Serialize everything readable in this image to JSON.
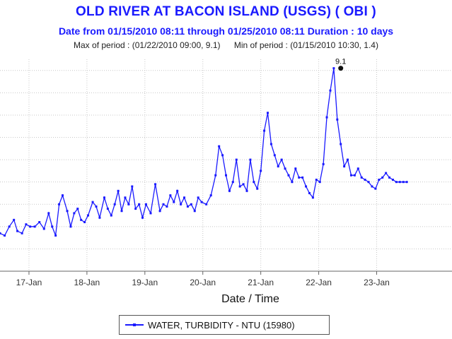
{
  "chart_data": {
    "type": "line",
    "title": "OLD RIVER AT BACON ISLAND (USGS) ( OBI )",
    "subtitle": "Date from 01/15/2010 08:11 through 01/25/2010 08:11 Duration : 10 days",
    "stats": {
      "max_text": "Max of period : (01/22/2010 09:00, 9.1)",
      "min_text": "Min of period : (01/15/2010 10:30,  1.4)"
    },
    "xlabel": "Date / Time",
    "ylabel": "",
    "x_unit": "days since 01/15/2010 00:00",
    "xlim": [
      16.5,
      24.3
    ],
    "ylim": [
      0,
      9.5
    ],
    "grid": true,
    "x_ticks": [
      {
        "x": 17,
        "label": "17-Jan"
      },
      {
        "x": 18,
        "label": "18-Jan"
      },
      {
        "x": 19,
        "label": "19-Jan"
      },
      {
        "x": 20,
        "label": "20-Jan"
      },
      {
        "x": 21,
        "label": "21-Jan"
      },
      {
        "x": 22,
        "label": "22-Jan"
      },
      {
        "x": 23,
        "label": "23-Jan"
      }
    ],
    "annotation": {
      "label": "9.1",
      "x": 22.38,
      "y": 9.1
    },
    "legend": {
      "position": "bottom-center",
      "label": "WATER, TURBIDITY -    NTU (15980)"
    },
    "series": [
      {
        "name": "WATER, TURBIDITY -    NTU (15980)",
        "color": "#1a1aff",
        "x": [
          16.5,
          16.58,
          16.66,
          16.74,
          16.8,
          16.88,
          16.95,
          17.02,
          17.1,
          17.18,
          17.26,
          17.34,
          17.4,
          17.46,
          17.52,
          17.58,
          17.66,
          17.72,
          17.78,
          17.84,
          17.9,
          17.96,
          18.02,
          18.1,
          18.16,
          18.22,
          18.3,
          18.36,
          18.42,
          18.48,
          18.54,
          18.6,
          18.66,
          18.72,
          18.78,
          18.84,
          18.9,
          18.96,
          19.02,
          19.1,
          19.18,
          19.26,
          19.32,
          19.38,
          19.44,
          19.5,
          19.56,
          19.62,
          19.68,
          19.74,
          19.8,
          19.86,
          19.92,
          19.98,
          20.06,
          20.14,
          20.22,
          20.28,
          20.34,
          20.4,
          20.46,
          20.52,
          20.58,
          20.64,
          20.7,
          20.76,
          20.82,
          20.88,
          20.94,
          21.0,
          21.06,
          21.12,
          21.18,
          21.24,
          21.3,
          21.36,
          21.42,
          21.48,
          21.54,
          21.6,
          21.66,
          21.72,
          21.78,
          21.84,
          21.9,
          21.96,
          22.02,
          22.08,
          22.14,
          22.2,
          22.26,
          22.32,
          22.38,
          22.44,
          22.5,
          22.56,
          22.62,
          22.68,
          22.74,
          22.8,
          22.86,
          22.92,
          22.98,
          23.04,
          23.1,
          23.16,
          23.22,
          23.28,
          23.34,
          23.4,
          23.46,
          23.52
        ],
        "y": [
          1.7,
          1.6,
          2.0,
          2.3,
          1.8,
          1.7,
          2.1,
          2.0,
          2.0,
          2.2,
          1.9,
          2.6,
          2.0,
          1.6,
          3.0,
          3.4,
          2.7,
          2.0,
          2.6,
          2.8,
          2.3,
          2.2,
          2.5,
          3.1,
          2.9,
          2.4,
          3.3,
          2.8,
          2.5,
          3.0,
          3.6,
          2.7,
          3.3,
          3.0,
          3.8,
          2.8,
          3.0,
          2.4,
          3.0,
          2.6,
          3.9,
          2.7,
          3.0,
          2.9,
          3.4,
          3.1,
          3.6,
          3.0,
          3.3,
          2.9,
          3.0,
          2.7,
          3.3,
          3.1,
          3.0,
          3.4,
          4.3,
          5.6,
          5.2,
          4.3,
          3.6,
          4.0,
          5.0,
          3.8,
          3.9,
          3.6,
          5.0,
          4.0,
          3.7,
          4.5,
          6.3,
          7.1,
          5.7,
          5.2,
          4.7,
          5.0,
          4.6,
          4.3,
          4.0,
          4.6,
          4.2,
          4.2,
          3.8,
          3.5,
          3.3,
          4.1,
          4.0,
          4.8,
          6.9,
          8.1,
          9.1,
          6.8,
          5.7,
          4.7,
          5.0,
          4.3,
          4.3,
          4.6,
          4.2,
          4.1,
          4.0,
          3.8,
          3.7,
          4.1,
          4.2,
          4.4,
          4.2,
          4.1,
          4.0,
          4.0,
          4.0,
          4.0
        ]
      }
    ]
  },
  "colors": {
    "series": "#1a1aff",
    "grid": "#c8c8c8",
    "title": "#1a1aff"
  }
}
